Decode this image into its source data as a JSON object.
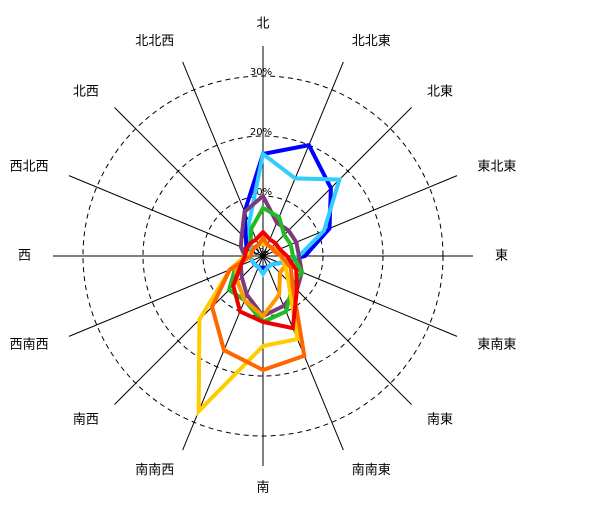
{
  "chart_data": {
    "type": "radar",
    "categories": [
      "北",
      "北北東",
      "北東",
      "東北東",
      "東",
      "東南東",
      "南東",
      "南南東",
      "南",
      "南南西",
      "南西",
      "西南西",
      "西",
      "西北西",
      "北西",
      "北北西"
    ],
    "rlim": [
      0,
      30
    ],
    "rticks": [
      {
        "value": 0,
        "label": "0%"
      },
      {
        "value": 10,
        "label": "10%"
      },
      {
        "value": 20,
        "label": "20%"
      },
      {
        "value": 30,
        "label": "30%"
      }
    ],
    "grid": true,
    "series": [
      {
        "color": "#0000ff",
        "values": [
          17,
          20,
          16,
          12,
          7,
          3,
          2,
          2,
          2,
          2,
          2,
          2,
          2,
          3,
          4,
          8
        ]
      },
      {
        "color": "#33ccff",
        "values": [
          17,
          14,
          18,
          11,
          6,
          3,
          2,
          2,
          3,
          2,
          2,
          2,
          2,
          2,
          3,
          6
        ]
      },
      {
        "color": "#7a3b7a",
        "values": [
          10,
          6,
          6,
          6,
          6,
          7,
          8,
          9,
          10,
          7,
          5,
          4,
          3,
          4,
          5,
          8
        ]
      },
      {
        "color": "#22bb22",
        "values": [
          8,
          7,
          5,
          5,
          5,
          7,
          7,
          10,
          11,
          8,
          8,
          5,
          3,
          3,
          3,
          5
        ]
      },
      {
        "color": "#ff9900",
        "values": [
          2,
          2,
          2,
          3,
          3,
          4,
          4,
          7,
          10,
          8,
          6,
          5,
          3,
          2,
          2,
          2
        ]
      },
      {
        "color": "#ffcc00",
        "values": [
          2,
          2,
          2,
          2,
          3,
          4,
          6,
          15,
          15,
          28,
          15,
          6,
          3,
          2,
          2,
          2
        ]
      },
      {
        "color": "#ff6600",
        "values": [
          3,
          2,
          2,
          2,
          3,
          5,
          7,
          18,
          19,
          17,
          12,
          6,
          2,
          2,
          2,
          2
        ]
      },
      {
        "color": "#ee0000",
        "values": [
          4,
          3,
          3,
          3,
          4,
          6,
          8,
          13,
          11,
          10,
          7,
          4,
          3,
          3,
          3,
          3
        ]
      }
    ]
  }
}
